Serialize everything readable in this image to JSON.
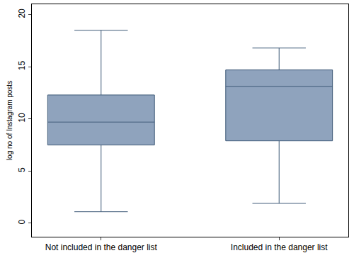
{
  "chart_data": {
    "type": "box",
    "y_label": "log no of Instagram posts",
    "categories": [
      "Not included in the danger list",
      "Included in the danger list"
    ],
    "min": [
      1.1,
      1.9
    ],
    "q1": [
      7.5,
      7.9
    ],
    "median": [
      9.7,
      13.1
    ],
    "q3": [
      12.3,
      14.7
    ],
    "max": [
      18.5,
      16.8
    ],
    "color": "#8fa3bd",
    "ylim": [
      -1.3,
      21
    ],
    "yticks": [
      0,
      5,
      10,
      15,
      20
    ],
    "grid": false
  }
}
